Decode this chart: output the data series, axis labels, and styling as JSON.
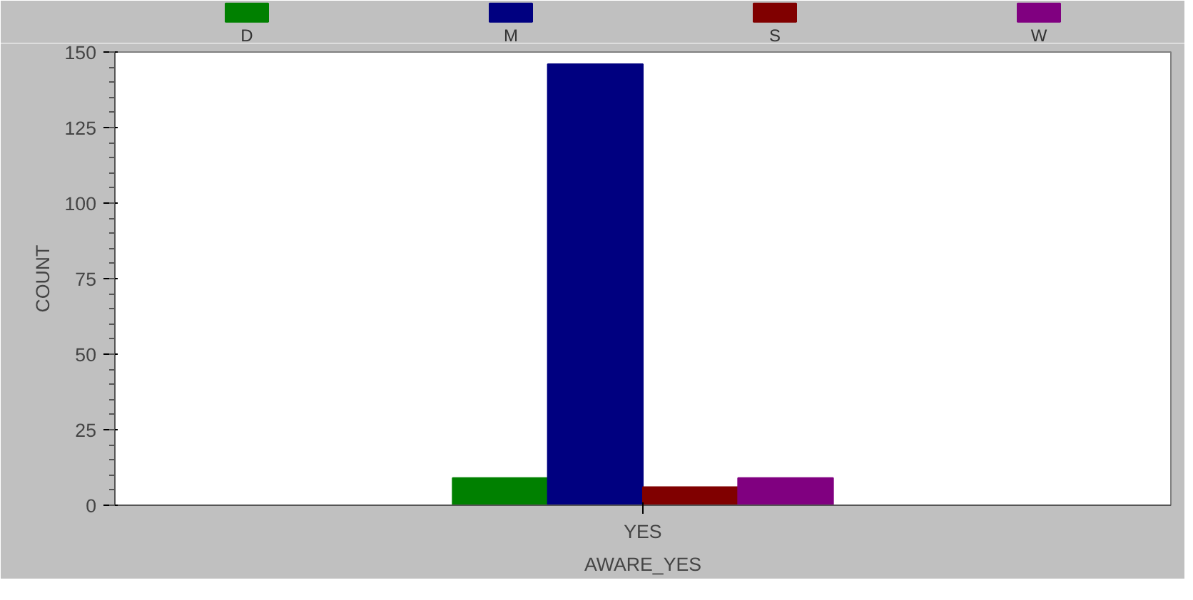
{
  "chart_data": {
    "type": "bar",
    "categories": [
      "YES"
    ],
    "xlabel": "AWARE_YES",
    "ylabel": "COUNT",
    "series": [
      {
        "name": "D",
        "color": "#008000",
        "values": [
          9
        ]
      },
      {
        "name": "M",
        "color": "#000080",
        "values": [
          146
        ]
      },
      {
        "name": "S",
        "color": "#800000",
        "values": [
          6
        ]
      },
      {
        "name": "W",
        "color": "#800080",
        "values": [
          9
        ]
      }
    ],
    "ylim": [
      0,
      150
    ],
    "yticks": [
      0,
      25,
      50,
      75,
      100,
      125,
      150
    ],
    "grid": false,
    "legend": "top"
  }
}
